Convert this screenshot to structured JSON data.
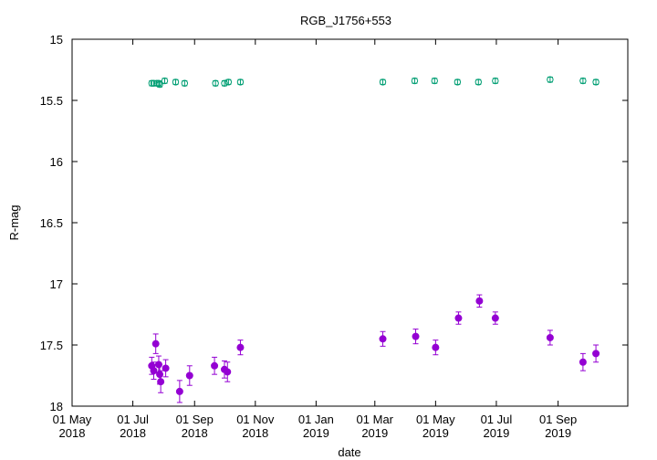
{
  "chart_data": {
    "type": "scatter",
    "title": "RGB_J1756+553",
    "xlabel": "date",
    "ylabel": "R-mag",
    "y_inverted": true,
    "ylim": [
      18,
      15
    ],
    "xlim": [
      "2018-05-01",
      "2019-11-10"
    ],
    "grid": false,
    "legend": "none",
    "y_ticks": [
      "15",
      "15.5",
      "16",
      "16.5",
      "17",
      "17.5",
      "18"
    ],
    "x_ticks": [
      {
        "date": "2018-05-01",
        "line1": "01 May",
        "line2": "2018"
      },
      {
        "date": "2018-07-01",
        "line1": "01 Jul",
        "line2": "2018"
      },
      {
        "date": "2018-09-01",
        "line1": "01 Sep",
        "line2": "2018"
      },
      {
        "date": "2018-11-01",
        "line1": "01 Nov",
        "line2": "2018"
      },
      {
        "date": "2019-01-01",
        "line1": "01 Jan",
        "line2": "2019"
      },
      {
        "date": "2019-03-01",
        "line1": "01 Mar",
        "line2": "2019"
      },
      {
        "date": "2019-05-01",
        "line1": "01 May",
        "line2": "2019"
      },
      {
        "date": "2019-07-01",
        "line1": "01 Jul",
        "line2": "2019"
      },
      {
        "date": "2019-09-01",
        "line1": "01 Sep",
        "line2": "2019"
      }
    ],
    "series": [
      {
        "color": "#009e73",
        "marker": "open-circle",
        "points": [
          {
            "x": "2018-07-20",
            "y": 15.36,
            "err": 0.02
          },
          {
            "x": "2018-07-22",
            "y": 15.36,
            "err": 0.02
          },
          {
            "x": "2018-07-25",
            "y": 15.36,
            "err": 0.02
          },
          {
            "x": "2018-07-27",
            "y": 15.36,
            "err": 0.02
          },
          {
            "x": "2018-07-28",
            "y": 15.37,
            "err": 0.02
          },
          {
            "x": "2018-08-02",
            "y": 15.34,
            "err": 0.02
          },
          {
            "x": "2018-08-13",
            "y": 15.35,
            "err": 0.02
          },
          {
            "x": "2018-08-22",
            "y": 15.36,
            "err": 0.02
          },
          {
            "x": "2018-09-22",
            "y": 15.36,
            "err": 0.02
          },
          {
            "x": "2018-10-01",
            "y": 15.36,
            "err": 0.02
          },
          {
            "x": "2018-10-05",
            "y": 15.35,
            "err": 0.02
          },
          {
            "x": "2018-10-17",
            "y": 15.35,
            "err": 0.02
          },
          {
            "x": "2019-03-09",
            "y": 15.35,
            "err": 0.02
          },
          {
            "x": "2019-04-10",
            "y": 15.34,
            "err": 0.02
          },
          {
            "x": "2019-04-30",
            "y": 15.34,
            "err": 0.02
          },
          {
            "x": "2019-05-23",
            "y": 15.35,
            "err": 0.02
          },
          {
            "x": "2019-06-13",
            "y": 15.35,
            "err": 0.02
          },
          {
            "x": "2019-06-30",
            "y": 15.34,
            "err": 0.02
          },
          {
            "x": "2019-08-24",
            "y": 15.33,
            "err": 0.02
          },
          {
            "x": "2019-09-26",
            "y": 15.34,
            "err": 0.02
          },
          {
            "x": "2019-10-09",
            "y": 15.35,
            "err": 0.02
          }
        ]
      },
      {
        "color": "#9400d3",
        "marker": "filled-circle",
        "points": [
          {
            "x": "2018-07-20",
            "y": 17.67,
            "err": 0.07
          },
          {
            "x": "2018-07-22",
            "y": 17.71,
            "err": 0.07
          },
          {
            "x": "2018-07-24",
            "y": 17.49,
            "err": 0.08
          },
          {
            "x": "2018-07-27",
            "y": 17.66,
            "err": 0.07
          },
          {
            "x": "2018-07-28",
            "y": 17.74,
            "err": 0.08
          },
          {
            "x": "2018-07-29",
            "y": 17.8,
            "err": 0.09
          },
          {
            "x": "2018-08-03",
            "y": 17.69,
            "err": 0.07
          },
          {
            "x": "2018-08-17",
            "y": 17.88,
            "err": 0.09
          },
          {
            "x": "2018-08-27",
            "y": 17.75,
            "err": 0.08
          },
          {
            "x": "2018-09-21",
            "y": 17.67,
            "err": 0.07
          },
          {
            "x": "2018-10-01",
            "y": 17.7,
            "err": 0.07
          },
          {
            "x": "2018-10-04",
            "y": 17.72,
            "err": 0.08
          },
          {
            "x": "2018-10-17",
            "y": 17.52,
            "err": 0.06
          },
          {
            "x": "2019-03-09",
            "y": 17.45,
            "err": 0.06
          },
          {
            "x": "2019-04-11",
            "y": 17.43,
            "err": 0.06
          },
          {
            "x": "2019-05-01",
            "y": 17.52,
            "err": 0.06
          },
          {
            "x": "2019-05-24",
            "y": 17.28,
            "err": 0.05
          },
          {
            "x": "2019-06-14",
            "y": 17.14,
            "err": 0.05
          },
          {
            "x": "2019-06-30",
            "y": 17.28,
            "err": 0.05
          },
          {
            "x": "2019-08-24",
            "y": 17.44,
            "err": 0.06
          },
          {
            "x": "2019-09-26",
            "y": 17.64,
            "err": 0.07
          },
          {
            "x": "2019-10-09",
            "y": 17.57,
            "err": 0.07
          }
        ]
      }
    ]
  }
}
